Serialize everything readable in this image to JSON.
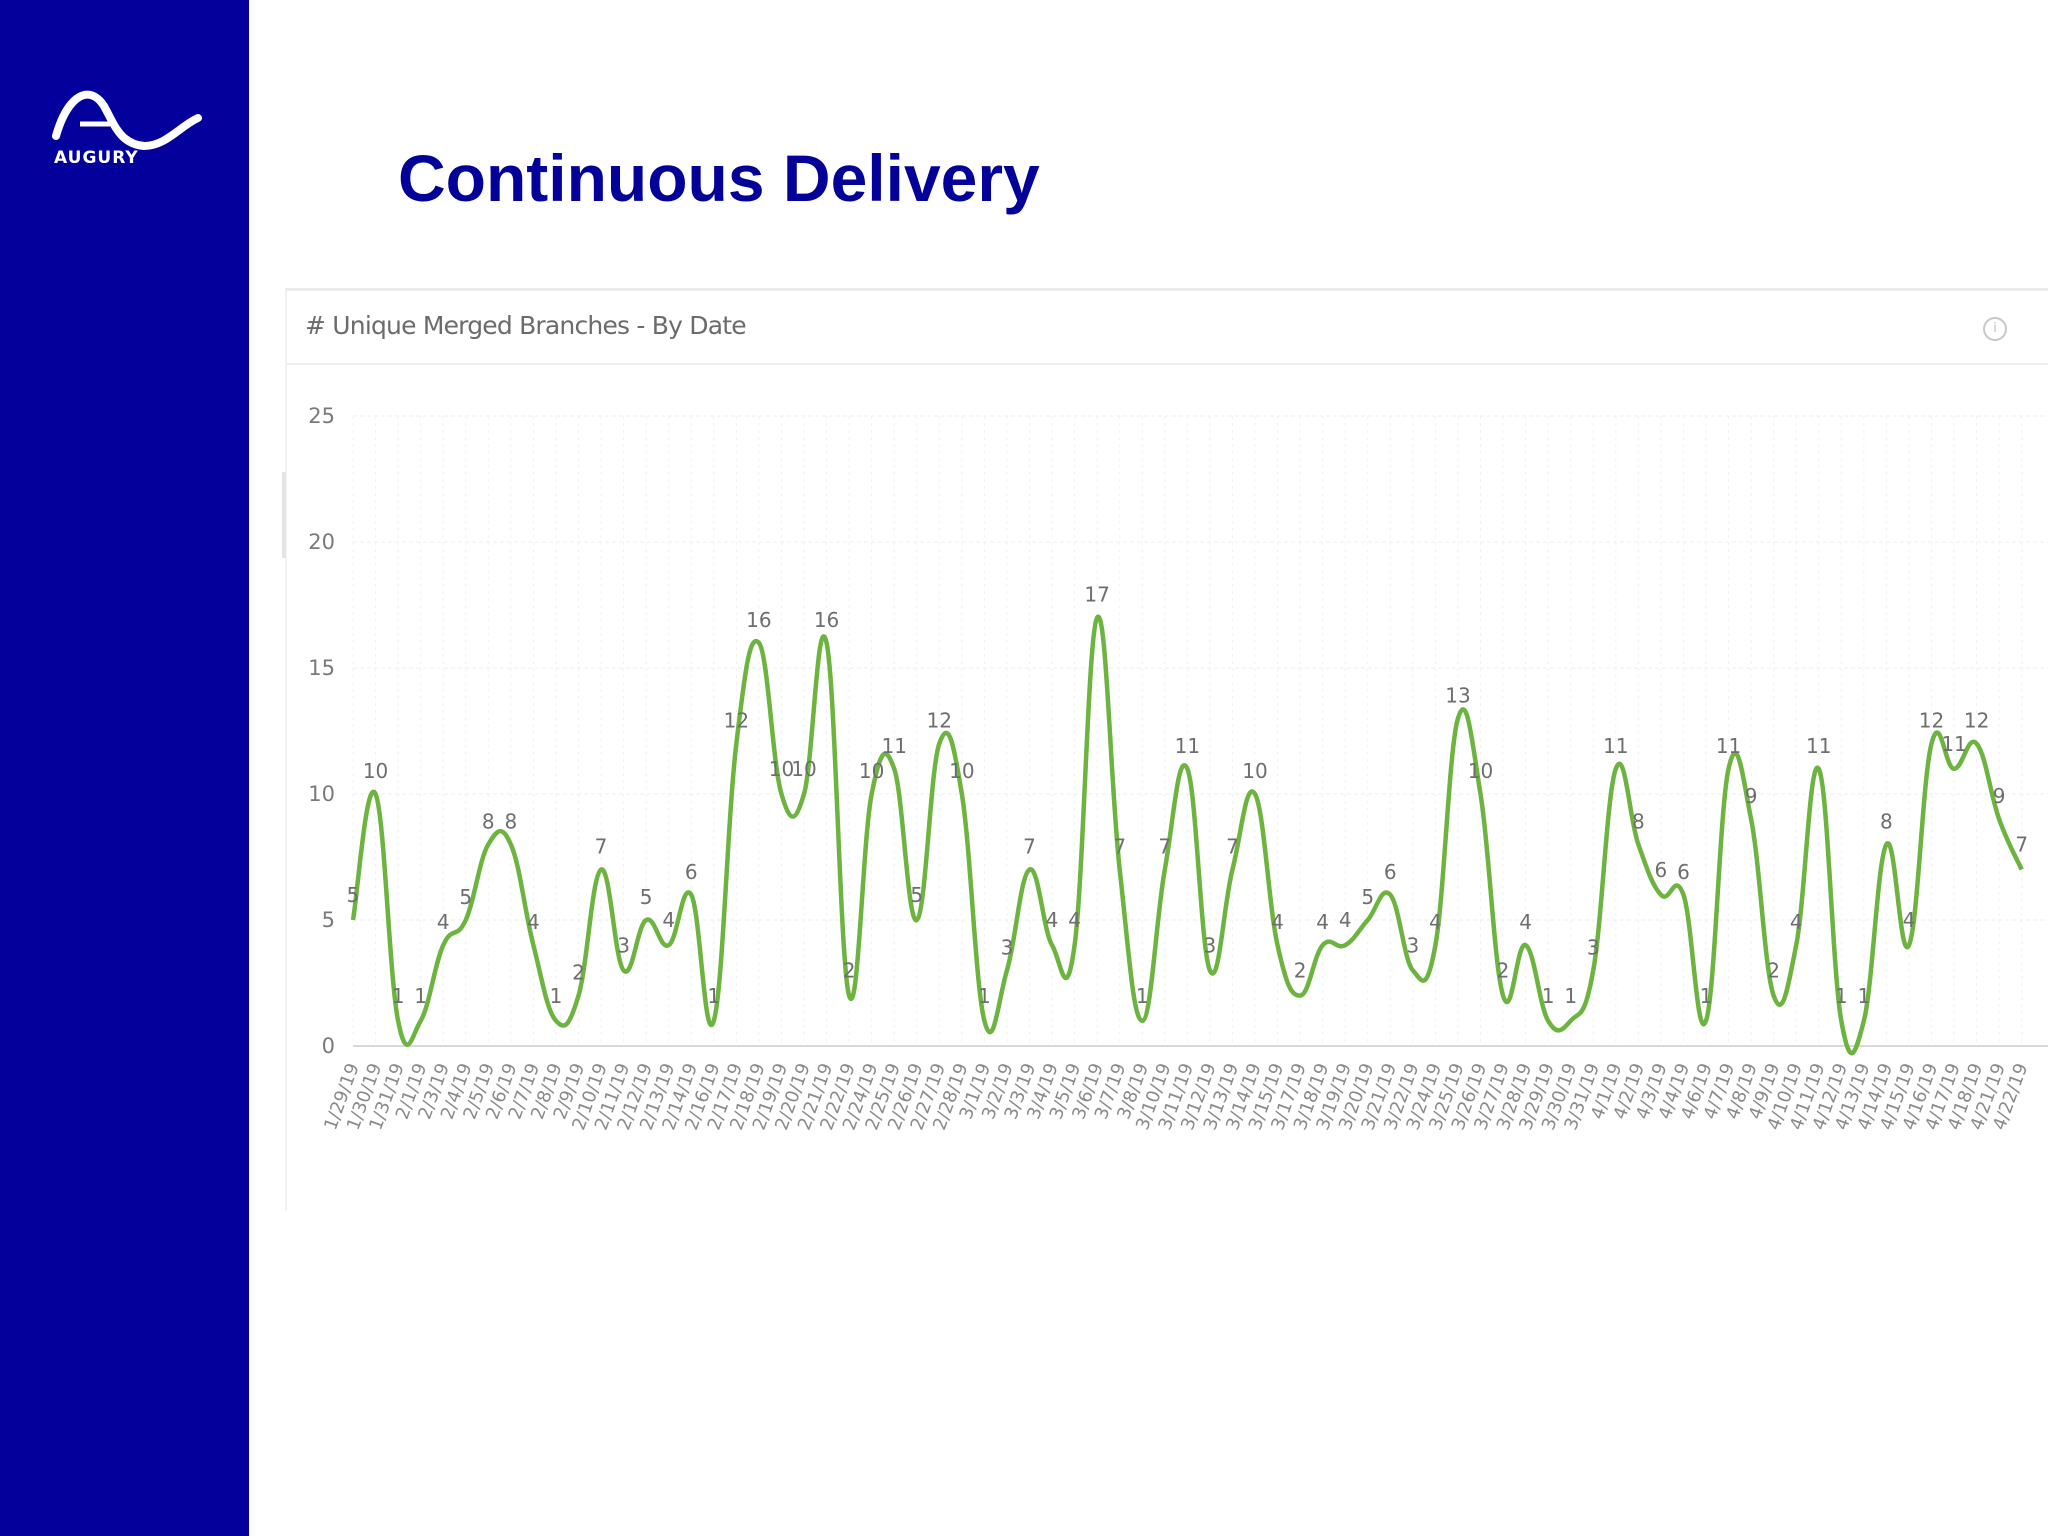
{
  "sidebar": {
    "logo_text": "AUGURY",
    "color": "#03009b"
  },
  "slide": {
    "title": "Continuous Delivery",
    "title_color": "#040199"
  },
  "chart_header": {
    "title": "# Unique Merged Branches - By Date",
    "info_icon": "info-icon"
  },
  "chart_data": {
    "type": "line",
    "title": "# Unique Merged Branches - By Date",
    "line_color": "#6cb33f",
    "ylim": [
      0,
      25
    ],
    "yticks": [
      0,
      5,
      10,
      15,
      20,
      25
    ],
    "grid": true,
    "x": [
      "1/29/19",
      "1/30/19",
      "1/31/19",
      "2/1/19",
      "2/3/19",
      "2/4/19",
      "2/5/19",
      "2/6/19",
      "2/7/19",
      "2/8/19",
      "2/9/19",
      "2/10/19",
      "2/11/19",
      "2/12/19",
      "2/13/19",
      "2/14/19",
      "2/16/19",
      "2/17/19",
      "2/18/19",
      "2/19/19",
      "2/20/19",
      "2/21/19",
      "2/22/19",
      "2/24/19",
      "2/25/19",
      "2/26/19",
      "2/27/19",
      "2/28/19",
      "3/1/19",
      "3/2/19",
      "3/3/19",
      "3/4/19",
      "3/5/19",
      "3/6/19",
      "3/7/19",
      "3/8/19",
      "3/10/19",
      "3/11/19",
      "3/12/19",
      "3/13/19",
      "3/14/19",
      "3/15/19",
      "3/17/19",
      "3/18/19",
      "3/19/19",
      "3/20/19",
      "3/21/19",
      "3/22/19",
      "3/24/19",
      "3/25/19",
      "3/26/19",
      "3/27/19",
      "3/28/19",
      "3/29/19",
      "3/30/19",
      "3/31/19",
      "4/1/19",
      "4/2/19",
      "4/3/19",
      "4/4/19",
      "4/6/19",
      "4/7/19",
      "4/8/19",
      "4/9/19",
      "4/10/19",
      "4/11/19",
      "4/12/19",
      "4/13/19",
      "4/14/19",
      "4/15/19",
      "4/16/19",
      "4/17/19",
      "4/18/19",
      "4/21/19",
      "4/22/19"
    ],
    "series": [
      {
        "values": [
          5,
          10,
          1,
          1,
          4,
          5,
          8,
          8,
          4,
          1,
          2,
          7,
          3,
          5,
          4,
          6,
          1,
          12,
          16,
          10,
          10,
          16,
          2,
          10,
          11,
          5,
          12,
          10,
          1,
          3,
          7,
          4,
          4,
          17,
          7,
          1,
          7,
          11,
          3,
          7,
          10,
          4,
          2,
          4,
          4,
          5,
          6,
          3,
          4,
          13,
          10,
          2,
          4,
          1,
          1,
          3,
          11,
          8,
          6,
          6,
          1,
          11,
          9,
          2,
          4,
          11,
          1,
          1,
          8,
          4,
          12,
          11,
          12,
          9,
          7
        ]
      }
    ]
  }
}
